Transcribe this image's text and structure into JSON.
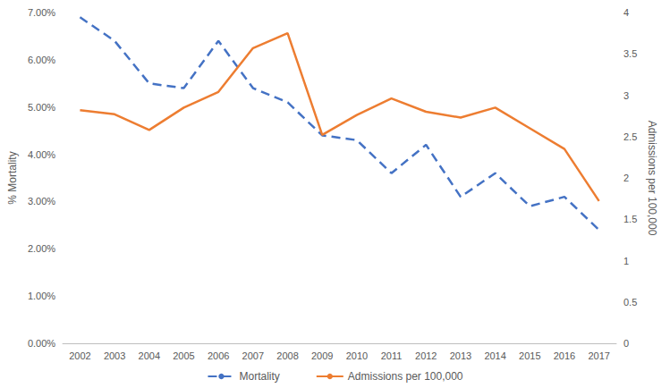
{
  "chart_data": {
    "type": "line",
    "categories": [
      "2002",
      "2003",
      "2004",
      "2005",
      "2006",
      "2007",
      "2008",
      "2009",
      "2010",
      "2011",
      "2012",
      "2013",
      "2014",
      "2015",
      "2016",
      "2017"
    ],
    "y_label": "% Mortality",
    "y2_label": "Admissions per 100,000",
    "ylim": [
      0,
      7
    ],
    "yticks": [
      {
        "value": 0,
        "label": "0.00%"
      },
      {
        "value": 1,
        "label": "1.00%"
      },
      {
        "value": 2,
        "label": "2.00%"
      },
      {
        "value": 3,
        "label": "3.00%"
      },
      {
        "value": 4,
        "label": "4.00%"
      },
      {
        "value": 5,
        "label": "5.00%"
      },
      {
        "value": 6,
        "label": "6.00%"
      },
      {
        "value": 7,
        "label": "7.00%"
      }
    ],
    "y2lim": [
      0,
      4
    ],
    "y2ticks": [
      0,
      0.5,
      1,
      1.5,
      2,
      2.5,
      3,
      3.5,
      4
    ],
    "series": [
      {
        "name": "Mortality",
        "color": "#4472c4",
        "line_style": "dashed",
        "marker": "none",
        "values": [
          6.9,
          6.4,
          5.5,
          5.4,
          6.4,
          5.4,
          5.1,
          4.4,
          4.3,
          3.6,
          4.2,
          3.1,
          3.6,
          2.9,
          3.1,
          2.4
        ]
      },
      {
        "name": "Admissions per 100,000",
        "color": "#ed7d31",
        "line_style": "solid",
        "marker": "none",
        "axis": "y2",
        "values": [
          2.82,
          2.77,
          2.58,
          2.85,
          3.04,
          3.57,
          3.75,
          2.52,
          2.76,
          2.96,
          2.8,
          2.73,
          2.85,
          2.6,
          2.35,
          1.72
        ]
      }
    ],
    "legend": "bottom",
    "grid": false
  }
}
